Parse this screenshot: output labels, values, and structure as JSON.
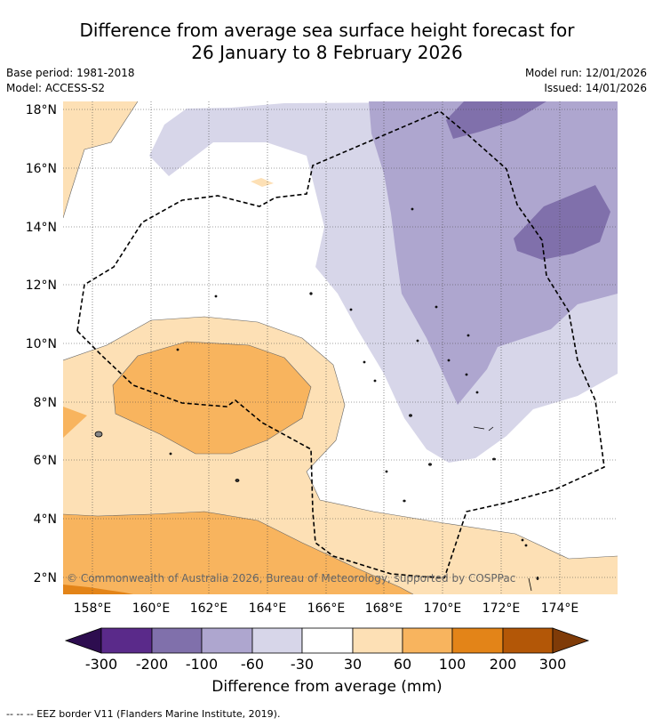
{
  "title": {
    "line1": "Difference from average sea surface height forecast for",
    "line2": "26 January to 8 February 2026"
  },
  "info": {
    "base_period": "Base period: 1981-2018",
    "model": "Model: ACCESS-S2",
    "model_run": "Model run: 12/01/2026",
    "issued": "Issued: 14/01/2026"
  },
  "axes": {
    "lat_labels": [
      "18°N",
      "16°N",
      "14°N",
      "12°N",
      "10°N",
      "8°N",
      "6°N",
      "4°N",
      "2°N"
    ],
    "lon_labels": [
      "158°E",
      "160°E",
      "162°E",
      "164°E",
      "166°E",
      "168°E",
      "170°E",
      "172°E",
      "174°E"
    ]
  },
  "copyright": "© Commonwealth of Australia 2026, Bureau of Meteorology, supported by COSPPac",
  "colorbar": {
    "label": "Difference from average (mm)",
    "ticks": [
      "-300",
      "-200",
      "-100",
      "-60",
      "-30",
      "30",
      "60",
      "100",
      "200",
      "300"
    ],
    "colors": {
      "lt_-300": "#2d0d4f",
      "-300_-200": "#5a2a8a",
      "-200_-100": "#8070ab",
      "-100_-60": "#aea6cf",
      "-60_-30": "#d7d6e9",
      "-30_30": "#ffffff",
      "30_60": "#fde0b5",
      "60_100": "#f8b45e",
      "100_200": "#e38418",
      "200_300": "#b35707",
      "gt_300": "#7f3b08"
    }
  },
  "footnote": "--  --  -- EEZ border V11 (Flanders Marine Institute, 2019)."
}
